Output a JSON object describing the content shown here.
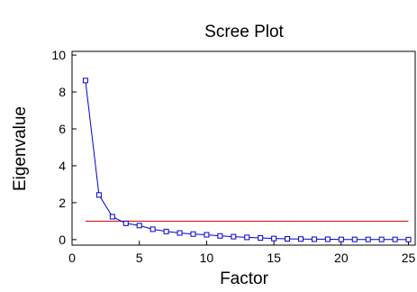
{
  "chart_data": {
    "type": "line",
    "title": "Scree Plot",
    "xlabel": "Factor",
    "ylabel": "Eigenvalue",
    "xlim": [
      0,
      25.5
    ],
    "ylim": [
      -0.3,
      10.2
    ],
    "xticks": [
      0,
      5,
      10,
      15,
      20,
      25
    ],
    "yticks": [
      0,
      2,
      4,
      6,
      8,
      10
    ],
    "grid": false,
    "legend": "none",
    "series": [
      {
        "color": "#0000cc",
        "marker": "square",
        "x": [
          1,
          2,
          3,
          4,
          5,
          6,
          7,
          8,
          9,
          10,
          11,
          12,
          13,
          14,
          15,
          16,
          17,
          18,
          19,
          20,
          21,
          22,
          23,
          24,
          25
        ],
        "y": [
          8.62,
          2.42,
          1.24,
          0.88,
          0.76,
          0.56,
          0.44,
          0.36,
          0.3,
          0.26,
          0.2,
          0.16,
          0.12,
          0.09,
          0.06,
          0.04,
          0.03,
          0.02,
          0.02,
          0.01,
          0.01,
          0.01,
          0.01,
          0.01,
          0.0
        ]
      }
    ],
    "reference_line": {
      "y": 1,
      "color": "#cc0000"
    }
  }
}
